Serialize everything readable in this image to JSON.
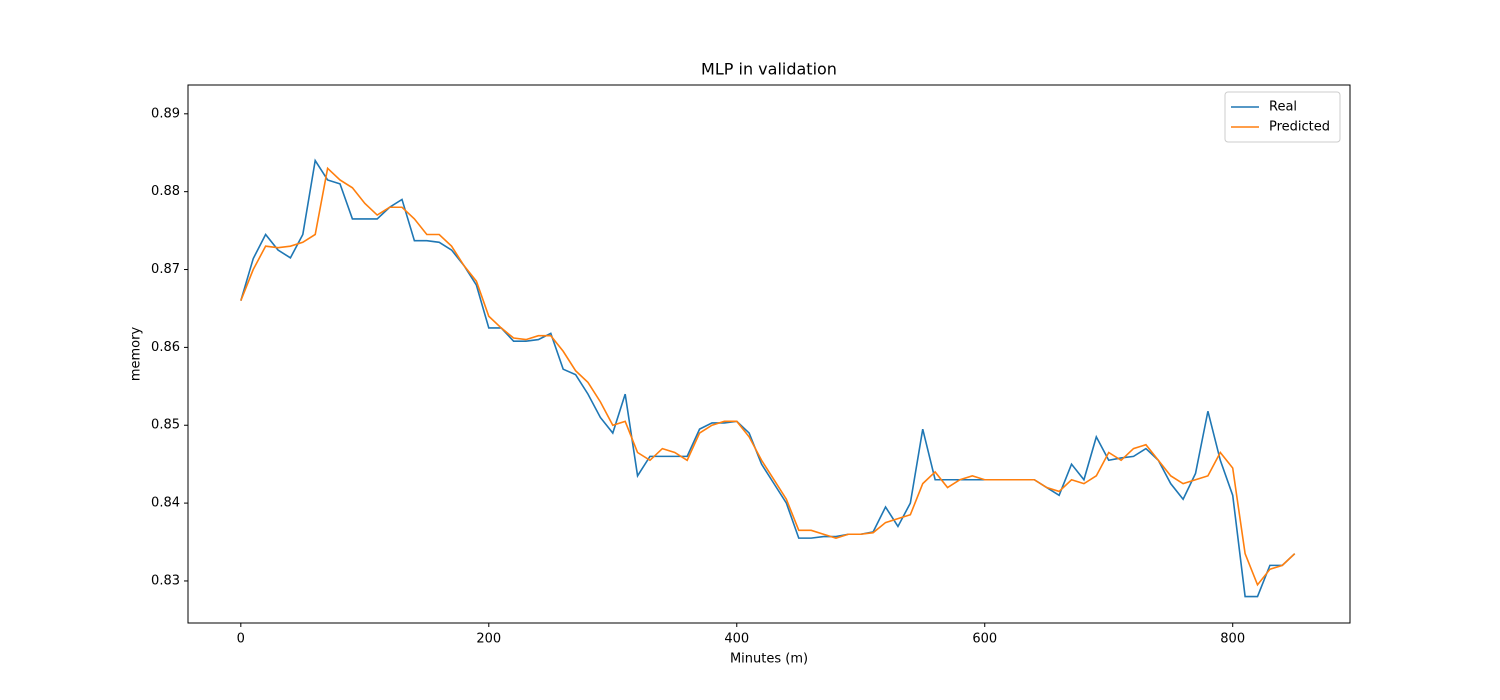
{
  "chart_data": {
    "type": "line",
    "title": "MLP in validation",
    "xlabel": "Minutes (m)",
    "ylabel": "memory",
    "x": [
      0,
      10,
      20,
      30,
      40,
      50,
      60,
      70,
      80,
      90,
      100,
      110,
      120,
      130,
      140,
      150,
      160,
      170,
      180,
      190,
      200,
      210,
      220,
      230,
      240,
      250,
      260,
      270,
      280,
      290,
      300,
      310,
      320,
      330,
      340,
      350,
      360,
      370,
      380,
      390,
      400,
      410,
      420,
      430,
      440,
      450,
      460,
      470,
      480,
      490,
      500,
      510,
      520,
      530,
      540,
      550,
      560,
      570,
      580,
      590,
      600,
      610,
      620,
      630,
      640,
      650,
      660,
      670,
      680,
      690,
      700,
      710,
      720,
      730,
      740,
      750,
      760,
      770,
      780,
      790,
      800,
      810,
      820,
      830,
      840,
      850
    ],
    "series": [
      {
        "name": "Real",
        "color": "#1f77b4",
        "values": [
          0.866,
          0.8714,
          0.8745,
          0.8725,
          0.8715,
          0.8745,
          0.884,
          0.8815,
          0.881,
          0.8765,
          0.8765,
          0.8765,
          0.878,
          0.879,
          0.8737,
          0.8737,
          0.8735,
          0.8725,
          0.8705,
          0.868,
          0.8625,
          0.8625,
          0.8608,
          0.8608,
          0.861,
          0.8618,
          0.8572,
          0.8565,
          0.854,
          0.851,
          0.849,
          0.854,
          0.8435,
          0.846,
          0.846,
          0.846,
          0.846,
          0.8495,
          0.8503,
          0.8503,
          0.8505,
          0.849,
          0.845,
          0.8425,
          0.84,
          0.8355,
          0.8355,
          0.8357,
          0.8357,
          0.836,
          0.836,
          0.8363,
          0.8395,
          0.837,
          0.84,
          0.8495,
          0.843,
          0.843,
          0.843,
          0.843,
          0.843,
          0.843,
          0.843,
          0.843,
          0.843,
          0.842,
          0.841,
          0.845,
          0.843,
          0.8485,
          0.8455,
          0.8458,
          0.846,
          0.847,
          0.8455,
          0.8425,
          0.8405,
          0.8438,
          0.8518,
          0.8455,
          0.841,
          0.828,
          0.828,
          0.832,
          0.832,
          0.8335
        ]
      },
      {
        "name": "Predicted",
        "color": "#ff7f0e",
        "values": [
          0.866,
          0.87,
          0.873,
          0.8728,
          0.873,
          0.8735,
          0.8745,
          0.883,
          0.8815,
          0.8805,
          0.8785,
          0.877,
          0.878,
          0.878,
          0.8765,
          0.8745,
          0.8745,
          0.873,
          0.8705,
          0.8685,
          0.864,
          0.8625,
          0.8612,
          0.861,
          0.8615,
          0.8615,
          0.8595,
          0.857,
          0.8555,
          0.853,
          0.85,
          0.8505,
          0.8465,
          0.8455,
          0.847,
          0.8465,
          0.8455,
          0.849,
          0.85,
          0.8505,
          0.8505,
          0.8485,
          0.8455,
          0.843,
          0.8405,
          0.8365,
          0.8365,
          0.836,
          0.8355,
          0.836,
          0.836,
          0.8362,
          0.8375,
          0.838,
          0.8385,
          0.8425,
          0.844,
          0.842,
          0.843,
          0.8435,
          0.843,
          0.843,
          0.843,
          0.843,
          0.843,
          0.842,
          0.8415,
          0.843,
          0.8425,
          0.8435,
          0.8465,
          0.8455,
          0.847,
          0.8475,
          0.8455,
          0.8435,
          0.8425,
          0.843,
          0.8435,
          0.8465,
          0.8445,
          0.8335,
          0.8295,
          0.8315,
          0.832,
          0.8335
        ]
      }
    ],
    "xlim": [
      -42.6,
      894.6
    ],
    "xticks": [
      0,
      200,
      400,
      600,
      800
    ],
    "ylim": [
      0.8246,
      0.8937
    ],
    "yticks": [
      0.83,
      0.84,
      0.85,
      0.86,
      0.87,
      0.88,
      0.89
    ],
    "legend": "upper right",
    "grid": false
  }
}
